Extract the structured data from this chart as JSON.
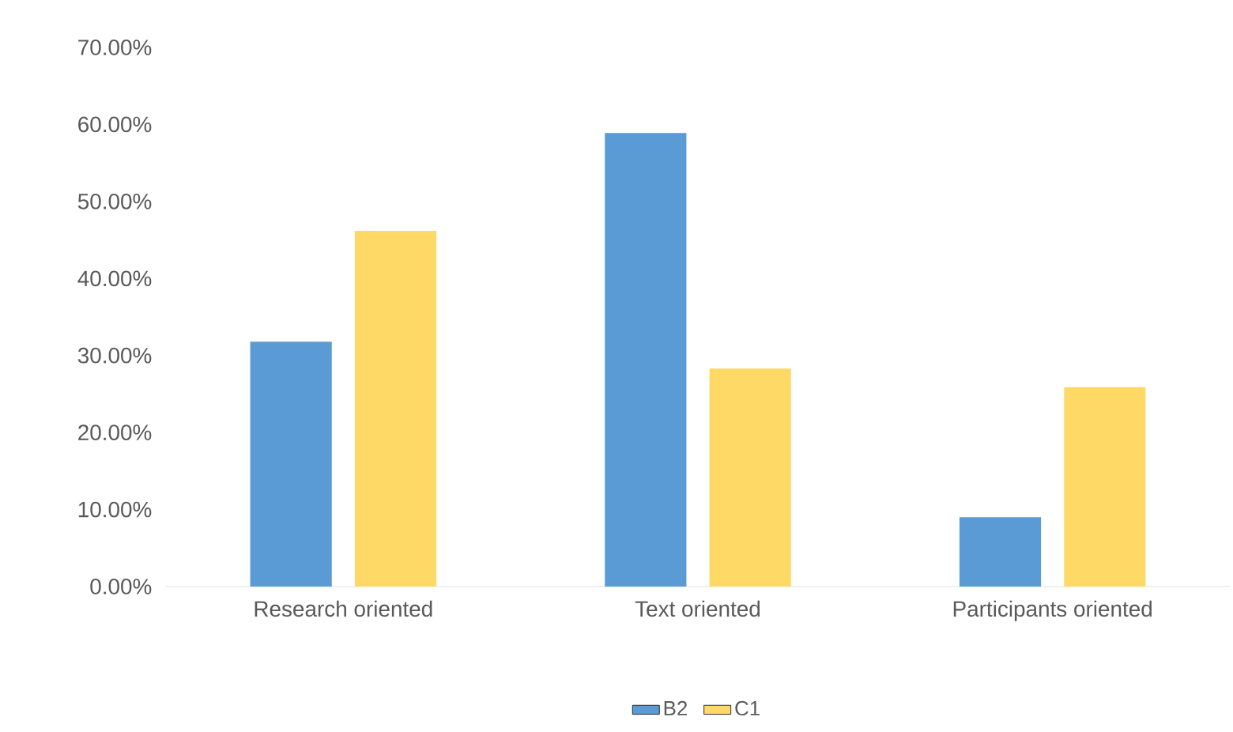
{
  "chart_data": {
    "type": "bar",
    "categories": [
      "Research oriented",
      "Text oriented",
      "Participants oriented"
    ],
    "series": [
      {
        "name": "B2",
        "color": "#5b9bd5",
        "values": [
          31.8,
          58.9,
          9.0
        ]
      },
      {
        "name": "C1",
        "color": "#ffd966",
        "values": [
          46.2,
          28.3,
          25.9
        ]
      }
    ],
    "ylim": [
      0,
      70
    ],
    "yticks": [
      {
        "value": 0,
        "label": "0.00%"
      },
      {
        "value": 10,
        "label": "10.00%"
      },
      {
        "value": 20,
        "label": "20.00%"
      },
      {
        "value": 30,
        "label": "30.00%"
      },
      {
        "value": 40,
        "label": "40.00%"
      },
      {
        "value": 50,
        "label": "50.00%"
      },
      {
        "value": 60,
        "label": "60.00%"
      },
      {
        "value": 70,
        "label": "70.00%"
      }
    ],
    "legend": "bottom"
  }
}
